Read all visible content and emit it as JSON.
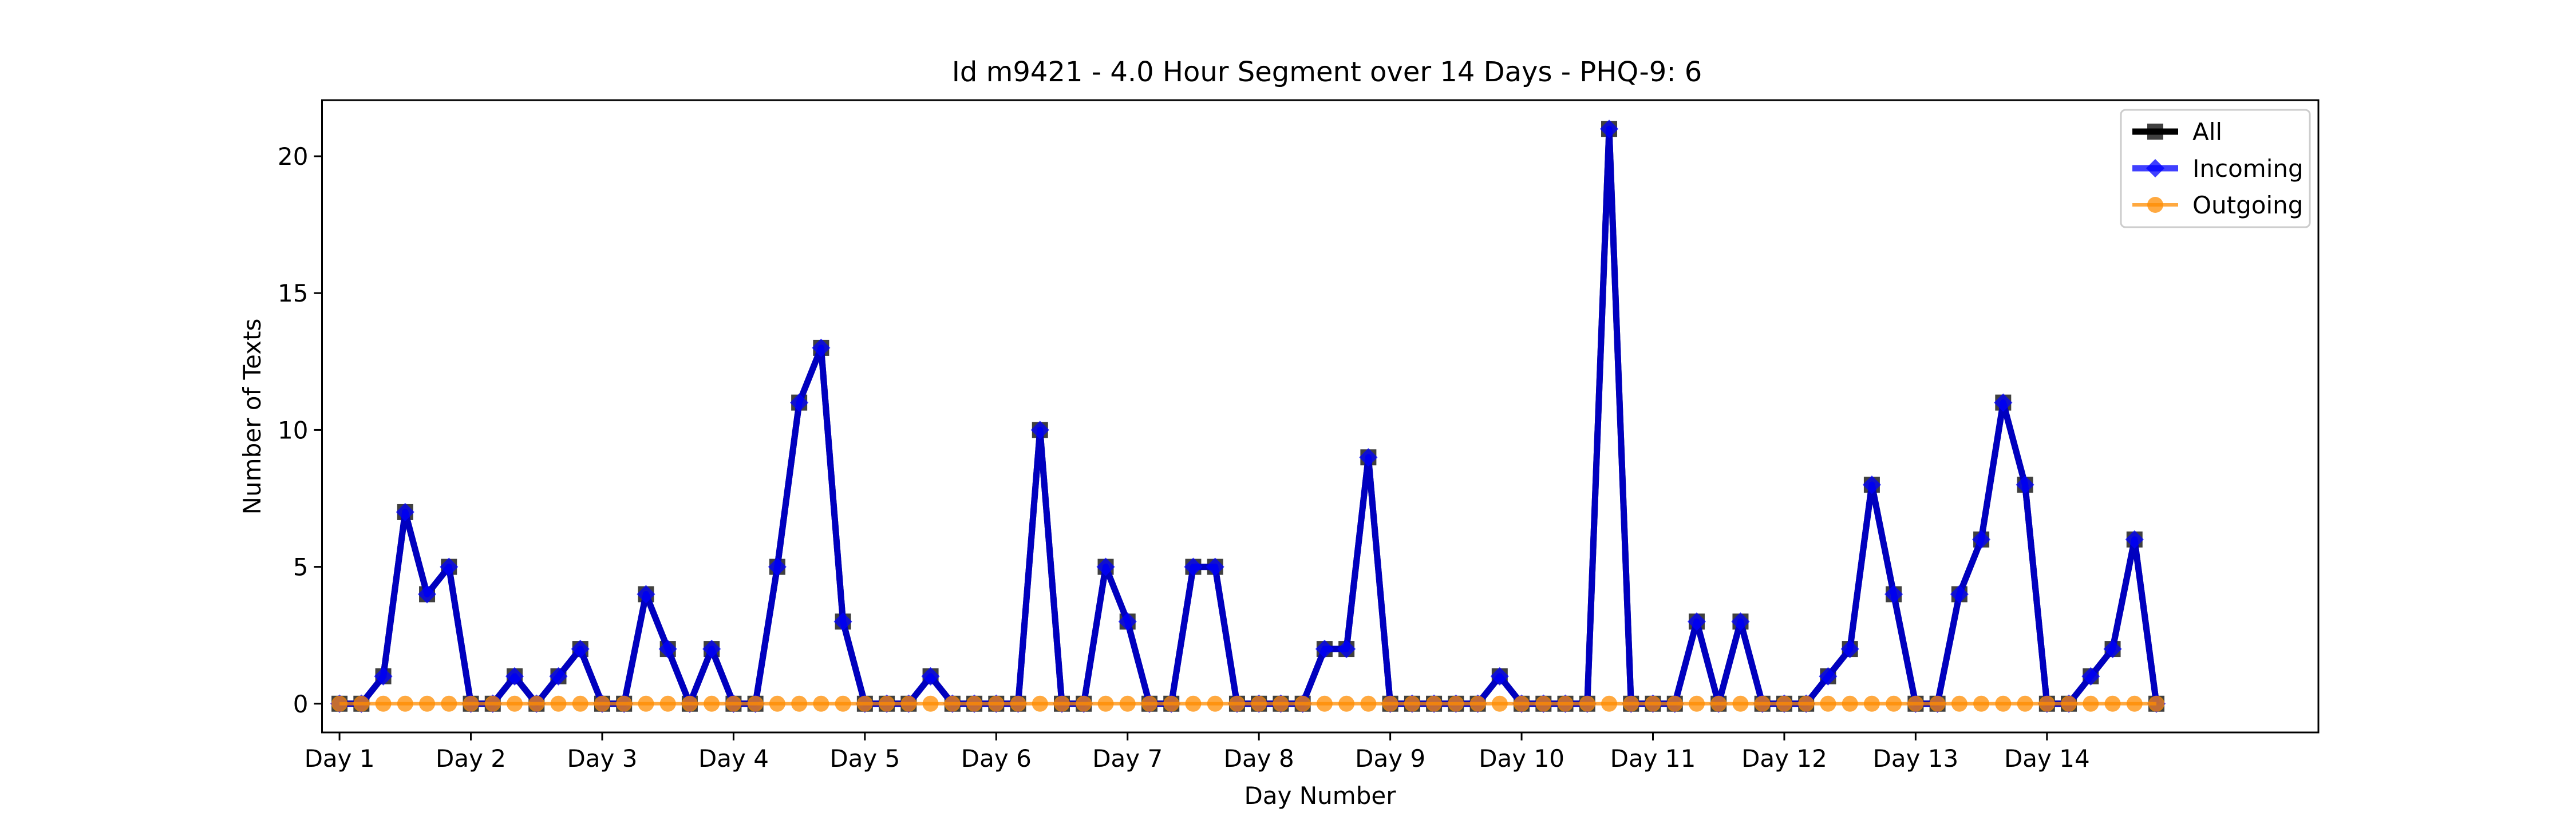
{
  "chart_data": {
    "type": "line",
    "title": "Id m9421 - 4.0 Hour Segment over 14 Days - PHQ-9: 6",
    "xlabel": "Day Number",
    "ylabel": "Number of Texts",
    "x_tick_labels": [
      "Day 1",
      "Day 2",
      "Day 3",
      "Day 4",
      "Day 5",
      "Day 6",
      "Day 7",
      "Day 8",
      "Day 9",
      "Day 10",
      "Day 11",
      "Day 12",
      "Day 13",
      "Day 14"
    ],
    "y_ticks": [
      0,
      5,
      10,
      15,
      20
    ],
    "segments_per_day": 6,
    "xlim": [
      -0.8,
      90.4
    ],
    "ylim": [
      -1.05,
      22.05
    ],
    "grid": false,
    "legend_placement": "top-right",
    "series": [
      {
        "name": "All",
        "color": "#000000",
        "marker": "square",
        "values": [
          0,
          0,
          1,
          7,
          4,
          5,
          0,
          0,
          1,
          0,
          1,
          2,
          0,
          0,
          4,
          2,
          0,
          2,
          0,
          0,
          5,
          11,
          13,
          3,
          0,
          0,
          0,
          1,
          0,
          0,
          0,
          0,
          10,
          0,
          0,
          5,
          3,
          0,
          0,
          5,
          5,
          0,
          0,
          0,
          0,
          2,
          2,
          9,
          0,
          0,
          0,
          0,
          0,
          1,
          0,
          0,
          0,
          0,
          21,
          0,
          0,
          0,
          3,
          0,
          3,
          0,
          0,
          0,
          1,
          2,
          8,
          4,
          0,
          0,
          4,
          6,
          11,
          8,
          0,
          0,
          1,
          2,
          6,
          0
        ]
      },
      {
        "name": "Incoming",
        "color": "#0000ff",
        "marker": "diamond",
        "values": [
          0,
          0,
          1,
          7,
          4,
          5,
          0,
          0,
          1,
          0,
          1,
          2,
          0,
          0,
          4,
          2,
          0,
          2,
          0,
          0,
          5,
          11,
          13,
          3,
          0,
          0,
          0,
          1,
          0,
          0,
          0,
          0,
          10,
          0,
          0,
          5,
          3,
          0,
          0,
          5,
          5,
          0,
          0,
          0,
          0,
          2,
          2,
          9,
          0,
          0,
          0,
          0,
          0,
          1,
          0,
          0,
          0,
          0,
          21,
          0,
          0,
          0,
          3,
          0,
          3,
          0,
          0,
          0,
          1,
          2,
          8,
          4,
          0,
          0,
          4,
          6,
          11,
          8,
          0,
          0,
          1,
          2,
          6,
          0
        ]
      },
      {
        "name": "Outgoing",
        "color": "#ff8c00",
        "marker": "circle",
        "values": [
          0,
          0,
          0,
          0,
          0,
          0,
          0,
          0,
          0,
          0,
          0,
          0,
          0,
          0,
          0,
          0,
          0,
          0,
          0,
          0,
          0,
          0,
          0,
          0,
          0,
          0,
          0,
          0,
          0,
          0,
          0,
          0,
          0,
          0,
          0,
          0,
          0,
          0,
          0,
          0,
          0,
          0,
          0,
          0,
          0,
          0,
          0,
          0,
          0,
          0,
          0,
          0,
          0,
          0,
          0,
          0,
          0,
          0,
          0,
          0,
          0,
          0,
          0,
          0,
          0,
          0,
          0,
          0,
          0,
          0,
          0,
          0,
          0,
          0,
          0,
          0,
          0,
          0,
          0,
          0,
          0,
          0,
          0,
          0
        ]
      }
    ]
  }
}
